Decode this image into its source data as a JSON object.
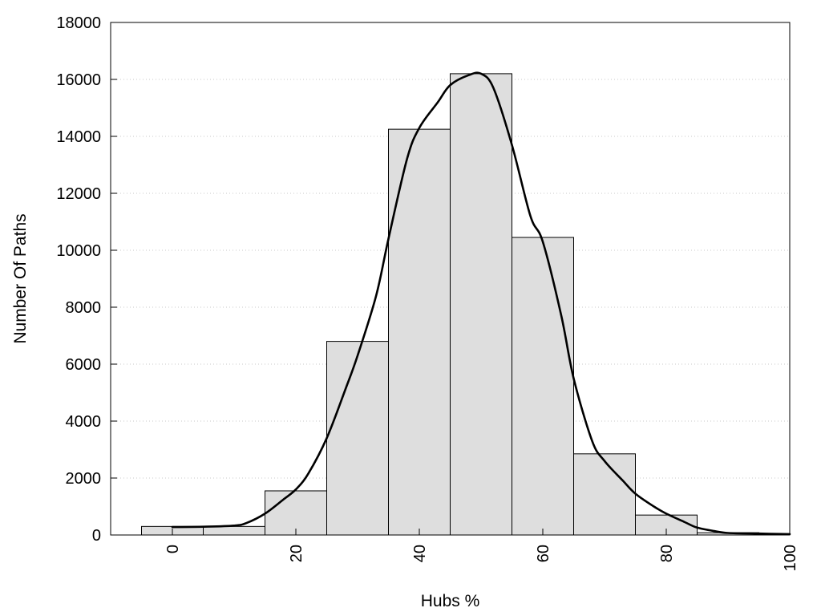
{
  "chart_data": {
    "type": "bar",
    "xlabel": "Hubs %",
    "ylabel": "Number Of Paths",
    "xlim": [
      -10,
      100
    ],
    "ylim": [
      0,
      18000
    ],
    "x_ticks": [
      0,
      20,
      40,
      60,
      80,
      100
    ],
    "y_ticks": [
      0,
      2000,
      4000,
      6000,
      8000,
      10000,
      12000,
      14000,
      16000,
      18000
    ],
    "grid": "horizontal dotted",
    "bin_width": 10,
    "bins": [
      {
        "center": 0,
        "value": 300
      },
      {
        "center": 10,
        "value": 300
      },
      {
        "center": 20,
        "value": 1550
      },
      {
        "center": 30,
        "value": 6800
      },
      {
        "center": 40,
        "value": 14250
      },
      {
        "center": 50,
        "value": 16200
      },
      {
        "center": 60,
        "value": 10450
      },
      {
        "center": 70,
        "value": 2850
      },
      {
        "center": 80,
        "value": 700
      },
      {
        "center": 90,
        "value": 80
      },
      {
        "center": 100,
        "value": 30
      }
    ],
    "curve": {
      "x": [
        0,
        5,
        10,
        12,
        15,
        18,
        20,
        22,
        25,
        28,
        30,
        33,
        35,
        38,
        40,
        43,
        45,
        48,
        50,
        52,
        55,
        58,
        60,
        63,
        65,
        68,
        70,
        73,
        75,
        78,
        80,
        83,
        85,
        88,
        90,
        95,
        100
      ],
      "y": [
        280,
        290,
        330,
        420,
        750,
        1250,
        1600,
        2150,
        3400,
        5100,
        6300,
        8400,
        10400,
        13200,
        14300,
        15200,
        15800,
        16150,
        16200,
        15700,
        13700,
        11200,
        10300,
        7700,
        5500,
        3300,
        2600,
        1900,
        1450,
        1000,
        750,
        450,
        260,
        130,
        70,
        50,
        30
      ]
    },
    "colors": {
      "bar_fill": "#dedede",
      "bar_stroke": "#000000",
      "curve": "#000000"
    }
  }
}
